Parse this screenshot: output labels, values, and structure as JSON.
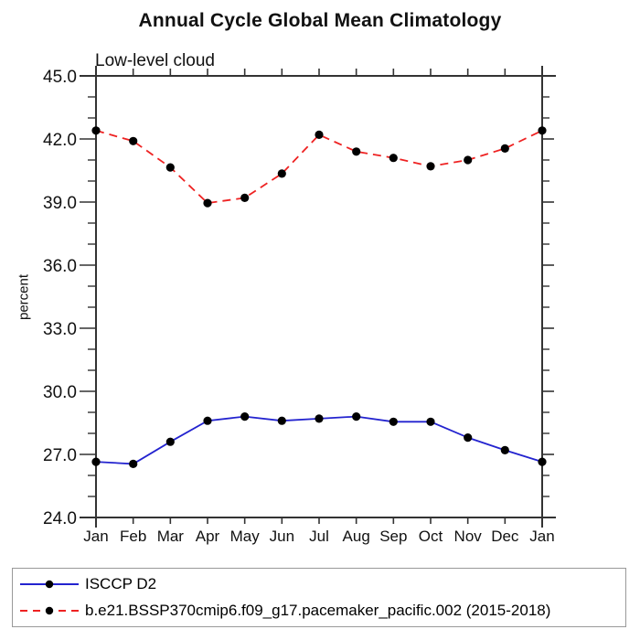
{
  "accent_colors": {
    "axis": "#333333",
    "marker": "#000000",
    "legend_border": "#999999",
    "text": "#111111"
  },
  "chart_data": {
    "type": "line",
    "title": "Annual Cycle Global Mean Climatology",
    "subtitle": "Low-level cloud",
    "ylabel": "percent",
    "xlabel": "",
    "grid": false,
    "legend_position": "bottom",
    "x_categories": [
      "Jan",
      "Feb",
      "Mar",
      "Apr",
      "May",
      "Jun",
      "Jul",
      "Aug",
      "Sep",
      "Oct",
      "Nov",
      "Dec",
      "Jan"
    ],
    "ylim": [
      24.0,
      45.0
    ],
    "ytick_major_interval": 3.0,
    "ytick_minor_interval": 1.0,
    "ytick_labels": [
      "24.0",
      "27.0",
      "30.0",
      "33.0",
      "36.0",
      "39.0",
      "42.0",
      "45.0"
    ],
    "series": [
      {
        "name": "ISCCP D2",
        "color": "#2323cf",
        "line_style": "solid",
        "marker": "black-dot",
        "values": [
          26.65,
          26.55,
          27.6,
          28.6,
          28.8,
          28.6,
          28.7,
          28.8,
          28.55,
          28.55,
          27.8,
          27.2,
          26.65
        ]
      },
      {
        "name": "b.e21.BSSP370cmip6.f09_g17.pacemaker_pacific.002 (2015-2018)",
        "color": "#ee2222",
        "line_style": "dashed",
        "marker": "black-dot",
        "values": [
          42.4,
          41.9,
          40.65,
          38.95,
          39.2,
          40.35,
          42.2,
          41.4,
          41.1,
          40.7,
          41.0,
          41.55,
          42.4
        ]
      }
    ]
  }
}
